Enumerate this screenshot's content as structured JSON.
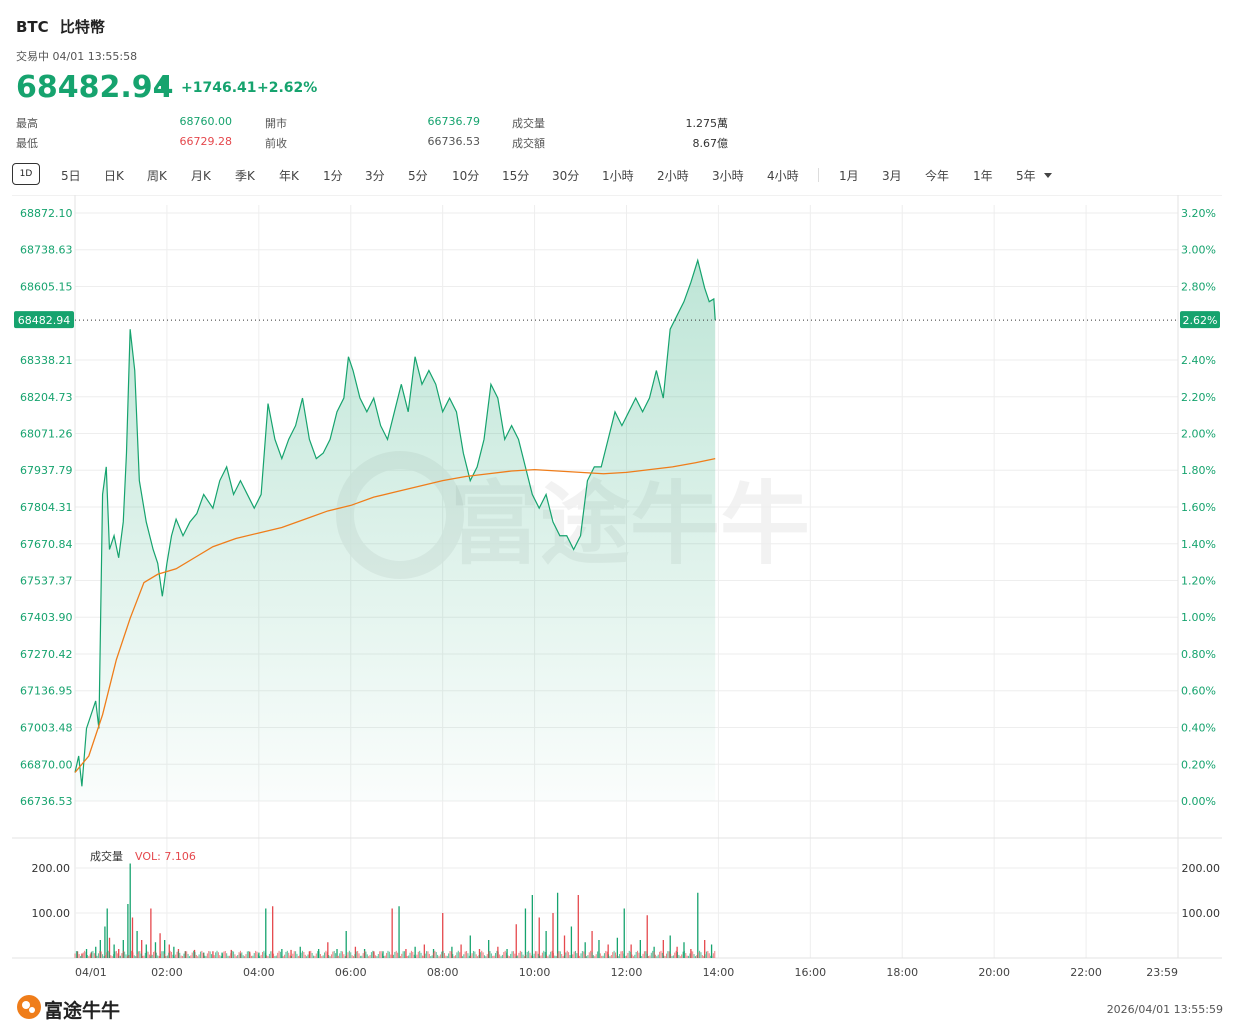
{
  "header": {
    "symbol": "BTC",
    "name": "比特幣",
    "status": "交易中 04/01 13:55:58",
    "price": "68482.94",
    "change": "+1746.41",
    "change_pct": "+2.62%"
  },
  "stats": [
    {
      "label": "最高",
      "value": "68760.00",
      "color": "#16a36e"
    },
    {
      "label": "開市",
      "value": "66736.79",
      "color": "#16a36e"
    },
    {
      "label": "成交量",
      "value": "1.275萬",
      "color": "#333333"
    },
    {
      "label": "最低",
      "value": "66729.28",
      "color": "#e5484d"
    },
    {
      "label": "前收",
      "value": "66736.53",
      "color": "#555555"
    },
    {
      "label": "成交額",
      "value": "8.67億",
      "color": "#333333"
    }
  ],
  "tabs": {
    "active": "1D",
    "items": [
      "5日",
      "日K",
      "周K",
      "月K",
      "季K",
      "年K",
      "1分",
      "3分",
      "5分",
      "10分",
      "15分",
      "30分",
      "1小時",
      "2小時",
      "3小時",
      "4小時",
      "1月",
      "3月",
      "今年",
      "1年",
      "5年"
    ]
  },
  "watermark": "富途牛牛",
  "logo_text": "富途牛牛",
  "footer_timestamp": "2026/04/01 13:55:59",
  "colors": {
    "up": "#16a36e",
    "down": "#e5484d",
    "avg_line": "#ef7d1a",
    "grid": "#eeeeee"
  },
  "chart_data": {
    "type": "line",
    "price_axis_ticks": [
      "68872.10",
      "68738.63",
      "68605.15",
      "68338.21",
      "68204.73",
      "68071.26",
      "67937.79",
      "67804.31",
      "67670.84",
      "67537.37",
      "67403.90",
      "67270.42",
      "67136.95",
      "67003.48",
      "66870.00",
      "66736.53"
    ],
    "pct_axis_ticks": [
      "3.20%",
      "3.00%",
      "2.80%",
      "2.40%",
      "2.20%",
      "2.00%",
      "1.80%",
      "1.60%",
      "1.40%",
      "1.20%",
      "1.00%",
      "0.80%",
      "0.60%",
      "0.40%",
      "0.20%",
      "0.00%"
    ],
    "current_price_label": "68482.94",
    "current_pct_label": "2.62%",
    "ylim": [
      66736.53,
      68872.1
    ],
    "x_tick_labels": [
      "04/01",
      "02:00",
      "04:00",
      "06:00",
      "08:00",
      "10:00",
      "12:00",
      "14:00",
      "16:00",
      "18:00",
      "20:00",
      "22:00",
      "23:59"
    ],
    "xlim_hours": [
      0,
      24
    ],
    "price_series": [
      [
        0.0,
        66840
      ],
      [
        0.08,
        66900
      ],
      [
        0.15,
        66790
      ],
      [
        0.25,
        67000
      ],
      [
        0.35,
        67050
      ],
      [
        0.45,
        67100
      ],
      [
        0.52,
        67000
      ],
      [
        0.6,
        67850
      ],
      [
        0.68,
        67950
      ],
      [
        0.75,
        67650
      ],
      [
        0.85,
        67700
      ],
      [
        0.95,
        67620
      ],
      [
        1.05,
        67750
      ],
      [
        1.12,
        68000
      ],
      [
        1.2,
        68450
      ],
      [
        1.3,
        68300
      ],
      [
        1.4,
        67900
      ],
      [
        1.55,
        67750
      ],
      [
        1.7,
        67650
      ],
      [
        1.8,
        67600
      ],
      [
        1.9,
        67480
      ],
      [
        2.0,
        67600
      ],
      [
        2.1,
        67700
      ],
      [
        2.2,
        67760
      ],
      [
        2.35,
        67700
      ],
      [
        2.5,
        67750
      ],
      [
        2.65,
        67780
      ],
      [
        2.8,
        67850
      ],
      [
        3.0,
        67800
      ],
      [
        3.15,
        67900
      ],
      [
        3.3,
        67950
      ],
      [
        3.45,
        67850
      ],
      [
        3.6,
        67900
      ],
      [
        3.75,
        67850
      ],
      [
        3.9,
        67800
      ],
      [
        4.05,
        67850
      ],
      [
        4.2,
        68180
      ],
      [
        4.35,
        68050
      ],
      [
        4.5,
        67980
      ],
      [
        4.65,
        68050
      ],
      [
        4.8,
        68100
      ],
      [
        4.95,
        68200
      ],
      [
        5.1,
        68050
      ],
      [
        5.25,
        67980
      ],
      [
        5.4,
        68000
      ],
      [
        5.55,
        68050
      ],
      [
        5.7,
        68150
      ],
      [
        5.85,
        68200
      ],
      [
        5.95,
        68350
      ],
      [
        6.05,
        68300
      ],
      [
        6.2,
        68200
      ],
      [
        6.35,
        68150
      ],
      [
        6.5,
        68200
      ],
      [
        6.65,
        68100
      ],
      [
        6.8,
        68050
      ],
      [
        6.95,
        68150
      ],
      [
        7.1,
        68250
      ],
      [
        7.25,
        68150
      ],
      [
        7.4,
        68350
      ],
      [
        7.55,
        68250
      ],
      [
        7.7,
        68300
      ],
      [
        7.85,
        68250
      ],
      [
        8.0,
        68150
      ],
      [
        8.15,
        68200
      ],
      [
        8.3,
        68150
      ],
      [
        8.45,
        68000
      ],
      [
        8.6,
        67900
      ],
      [
        8.75,
        67950
      ],
      [
        8.9,
        68050
      ],
      [
        9.05,
        68250
      ],
      [
        9.2,
        68200
      ],
      [
        9.35,
        68050
      ],
      [
        9.5,
        68100
      ],
      [
        9.65,
        68050
      ],
      [
        9.8,
        67950
      ],
      [
        9.95,
        67850
      ],
      [
        10.1,
        67800
      ],
      [
        10.25,
        67850
      ],
      [
        10.4,
        67750
      ],
      [
        10.55,
        67700
      ],
      [
        10.7,
        67700
      ],
      [
        10.85,
        67650
      ],
      [
        11.0,
        67700
      ],
      [
        11.15,
        67900
      ],
      [
        11.3,
        67950
      ],
      [
        11.45,
        67950
      ],
      [
        11.6,
        68050
      ],
      [
        11.75,
        68150
      ],
      [
        11.9,
        68100
      ],
      [
        12.05,
        68150
      ],
      [
        12.2,
        68200
      ],
      [
        12.35,
        68150
      ],
      [
        12.5,
        68200
      ],
      [
        12.65,
        68300
      ],
      [
        12.8,
        68200
      ],
      [
        12.95,
        68450
      ],
      [
        13.1,
        68500
      ],
      [
        13.25,
        68550
      ],
      [
        13.4,
        68620
      ],
      [
        13.55,
        68700
      ],
      [
        13.7,
        68600
      ],
      [
        13.8,
        68550
      ],
      [
        13.9,
        68560
      ],
      [
        13.93,
        68483
      ]
    ],
    "avg_series": [
      [
        0.0,
        66840
      ],
      [
        0.3,
        66900
      ],
      [
        0.6,
        67050
      ],
      [
        0.9,
        67250
      ],
      [
        1.2,
        67400
      ],
      [
        1.5,
        67530
      ],
      [
        1.8,
        67560
      ],
      [
        2.2,
        67580
      ],
      [
        2.6,
        67620
      ],
      [
        3.0,
        67660
      ],
      [
        3.5,
        67690
      ],
      [
        4.0,
        67710
      ],
      [
        4.5,
        67730
      ],
      [
        5.0,
        67760
      ],
      [
        5.5,
        67790
      ],
      [
        6.0,
        67810
      ],
      [
        6.5,
        67840
      ],
      [
        7.0,
        67860
      ],
      [
        7.5,
        67880
      ],
      [
        8.0,
        67900
      ],
      [
        8.5,
        67915
      ],
      [
        9.0,
        67925
      ],
      [
        9.5,
        67935
      ],
      [
        10.0,
        67940
      ],
      [
        10.5,
        67935
      ],
      [
        11.0,
        67930
      ],
      [
        11.5,
        67925
      ],
      [
        12.0,
        67930
      ],
      [
        12.5,
        67940
      ],
      [
        13.0,
        67950
      ],
      [
        13.5,
        67965
      ],
      [
        13.93,
        67980
      ]
    ],
    "volume": {
      "label": "成交量",
      "vol_label": "VOL: 7.106",
      "ticks": [
        "200.00",
        "100.00"
      ],
      "ylim": [
        0,
        200
      ],
      "bars": [
        [
          0.05,
          15,
          "up"
        ],
        [
          0.15,
          10,
          "down"
        ],
        [
          0.25,
          20,
          "up"
        ],
        [
          0.35,
          12,
          "down"
        ],
        [
          0.45,
          25,
          "up"
        ],
        [
          0.55,
          40,
          "up"
        ],
        [
          0.65,
          70,
          "up"
        ],
        [
          0.7,
          110,
          "up"
        ],
        [
          0.75,
          45,
          "down"
        ],
        [
          0.85,
          30,
          "up"
        ],
        [
          0.95,
          20,
          "down"
        ],
        [
          1.05,
          40,
          "up"
        ],
        [
          1.15,
          120,
          "up"
        ],
        [
          1.2,
          210,
          "up"
        ],
        [
          1.25,
          90,
          "down"
        ],
        [
          1.35,
          60,
          "up"
        ],
        [
          1.45,
          40,
          "down"
        ],
        [
          1.55,
          30,
          "up"
        ],
        [
          1.65,
          110,
          "down"
        ],
        [
          1.75,
          35,
          "up"
        ],
        [
          1.85,
          55,
          "down"
        ],
        [
          1.95,
          40,
          "up"
        ],
        [
          2.05,
          30,
          "down"
        ],
        [
          2.15,
          25,
          "up"
        ],
        [
          2.25,
          20,
          "down"
        ],
        [
          2.4,
          15,
          "up"
        ],
        [
          2.6,
          18,
          "down"
        ],
        [
          2.8,
          12,
          "up"
        ],
        [
          3.0,
          15,
          "down"
        ],
        [
          3.2,
          12,
          "up"
        ],
        [
          3.4,
          18,
          "down"
        ],
        [
          3.6,
          10,
          "up"
        ],
        [
          3.8,
          14,
          "down"
        ],
        [
          4.0,
          12,
          "up"
        ],
        [
          4.15,
          110,
          "up"
        ],
        [
          4.3,
          115,
          "down"
        ],
        [
          4.5,
          20,
          "up"
        ],
        [
          4.7,
          18,
          "down"
        ],
        [
          4.9,
          25,
          "up"
        ],
        [
          5.1,
          15,
          "down"
        ],
        [
          5.3,
          20,
          "up"
        ],
        [
          5.5,
          35,
          "down"
        ],
        [
          5.7,
          20,
          "up"
        ],
        [
          5.9,
          60,
          "up"
        ],
        [
          6.1,
          25,
          "down"
        ],
        [
          6.3,
          20,
          "up"
        ],
        [
          6.5,
          15,
          "down"
        ],
        [
          6.7,
          15,
          "up"
        ],
        [
          6.9,
          110,
          "down"
        ],
        [
          7.05,
          115,
          "up"
        ],
        [
          7.2,
          20,
          "down"
        ],
        [
          7.4,
          25,
          "up"
        ],
        [
          7.6,
          30,
          "down"
        ],
        [
          7.8,
          20,
          "up"
        ],
        [
          8.0,
          100,
          "down"
        ],
        [
          8.2,
          25,
          "up"
        ],
        [
          8.4,
          30,
          "down"
        ],
        [
          8.6,
          50,
          "up"
        ],
        [
          8.8,
          20,
          "down"
        ],
        [
          9.0,
          40,
          "up"
        ],
        [
          9.2,
          25,
          "down"
        ],
        [
          9.4,
          20,
          "up"
        ],
        [
          9.6,
          75,
          "down"
        ],
        [
          9.8,
          110,
          "up"
        ],
        [
          9.95,
          140,
          "up"
        ],
        [
          10.1,
          90,
          "down"
        ],
        [
          10.25,
          60,
          "up"
        ],
        [
          10.4,
          100,
          "down"
        ],
        [
          10.5,
          145,
          "up"
        ],
        [
          10.65,
          50,
          "down"
        ],
        [
          10.8,
          70,
          "up"
        ],
        [
          10.95,
          140,
          "down"
        ],
        [
          11.1,
          35,
          "up"
        ],
        [
          11.25,
          60,
          "down"
        ],
        [
          11.4,
          40,
          "up"
        ],
        [
          11.6,
          30,
          "down"
        ],
        [
          11.8,
          45,
          "up"
        ],
        [
          11.95,
          110,
          "up"
        ],
        [
          12.1,
          30,
          "down"
        ],
        [
          12.3,
          40,
          "up"
        ],
        [
          12.45,
          95,
          "down"
        ],
        [
          12.6,
          25,
          "up"
        ],
        [
          12.8,
          40,
          "down"
        ],
        [
          12.95,
          50,
          "up"
        ],
        [
          13.1,
          25,
          "down"
        ],
        [
          13.25,
          35,
          "up"
        ],
        [
          13.4,
          20,
          "down"
        ],
        [
          13.55,
          145,
          "up"
        ],
        [
          13.7,
          40,
          "down"
        ],
        [
          13.85,
          30,
          "up"
        ]
      ]
    }
  }
}
